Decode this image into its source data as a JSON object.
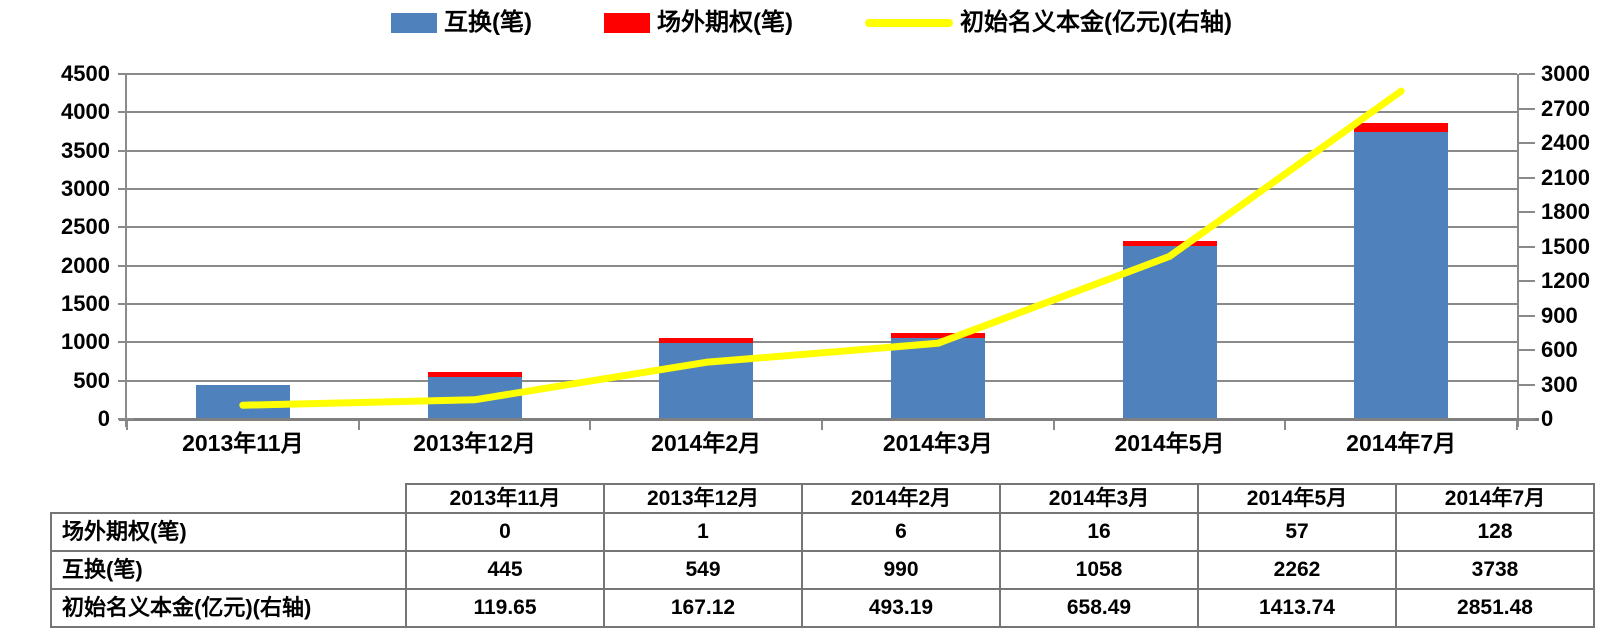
{
  "colors": {
    "swap_bar": "#4F81BD",
    "option_bar": "#FF0000",
    "notional_line": "#FFFF00",
    "gridline": "#8a8a8a",
    "table_border": "#757575"
  },
  "legend": [
    {
      "label": "互换(笔)",
      "type": "bar",
      "color": "#4F81BD"
    },
    {
      "label": "场外期权(笔)",
      "type": "bar",
      "color": "#FF0000"
    },
    {
      "label": "初始名义本金(亿元)(右轴)",
      "type": "line",
      "color": "#FFFF00"
    }
  ],
  "chart_data": {
    "type": "bar",
    "subtype": "stacked-bars-with-line",
    "categories": [
      "2013年11月",
      "2013年12月",
      "2014年2月",
      "2014年3月",
      "2014年5月",
      "2014年7月"
    ],
    "series": [
      {
        "name": "互换(笔)",
        "type": "bar",
        "stack": true,
        "axis": "left",
        "color": "#4F81BD",
        "values": [
          445,
          549,
          990,
          1058,
          2262,
          3738
        ]
      },
      {
        "name": "场外期权(笔)",
        "type": "bar",
        "stack": true,
        "axis": "left",
        "color": "#FF0000",
        "values": [
          0,
          1,
          6,
          16,
          57,
          128
        ]
      },
      {
        "name": "初始名义本金(亿元)(右轴)",
        "type": "line",
        "axis": "right",
        "color": "#FFFF00",
        "values": [
          119.65,
          167.12,
          493.19,
          658.49,
          1413.74,
          2851.48
        ]
      }
    ],
    "left_axis": {
      "min": 0,
      "max": 4500,
      "step": 500,
      "ticks": [
        "0",
        "500",
        "1000",
        "1500",
        "2000",
        "2500",
        "3000",
        "3500",
        "4000",
        "4500"
      ]
    },
    "right_axis": {
      "min": 0,
      "max": 3000,
      "step": 300,
      "ticks": [
        "0",
        "300",
        "600",
        "900",
        "1200",
        "1500",
        "1800",
        "2100",
        "2400",
        "2700",
        "3000"
      ]
    },
    "grid": true,
    "legend_position": "top",
    "title": "",
    "xlabel": "",
    "ylabel": ""
  },
  "table": {
    "columns": [
      "2013年11月",
      "2013年12月",
      "2014年2月",
      "2014年3月",
      "2014年5月",
      "2014年7月"
    ],
    "rows": [
      {
        "label": "场外期权(笔)",
        "values": [
          "0",
          "1",
          "6",
          "16",
          "57",
          "128"
        ]
      },
      {
        "label": "互换(笔)",
        "values": [
          "445",
          "549",
          "990",
          "1058",
          "2262",
          "3738"
        ]
      },
      {
        "label": "初始名义本金(亿元)(右轴)",
        "values": [
          "119.65",
          "167.12",
          "493.19",
          "658.49",
          "1413.74",
          "2851.48"
        ]
      }
    ]
  }
}
